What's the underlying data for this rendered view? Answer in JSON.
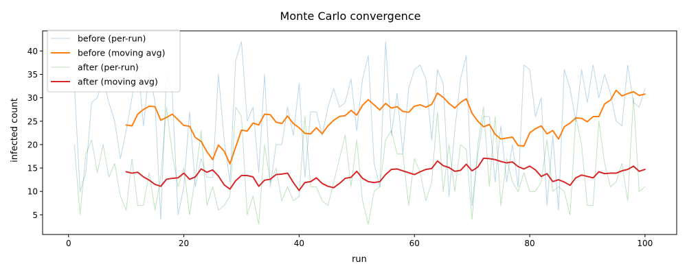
{
  "chart_data": {
    "type": "line",
    "title": "Monte Carlo convergence",
    "xlabel": "run",
    "ylabel": "infected count",
    "xlim": [
      -4.5,
      105.5
    ],
    "ylim": [
      0.8,
      44.3
    ],
    "x_ticks": [
      0,
      20,
      40,
      60,
      80,
      100
    ],
    "y_ticks": [
      5,
      10,
      15,
      20,
      25,
      30,
      35,
      40
    ],
    "grid": false,
    "legend_position": "upper-left",
    "series": [
      {
        "name": "before (per-run)",
        "color": "#1f77b4",
        "opacity": 0.3,
        "stroke_width": 1,
        "x": [
          1,
          2,
          3,
          4,
          5,
          6,
          7,
          8,
          9,
          10,
          11,
          12,
          13,
          14,
          15,
          16,
          17,
          18,
          19,
          20,
          21,
          22,
          23,
          24,
          25,
          26,
          27,
          28,
          29,
          30,
          31,
          32,
          33,
          34,
          35,
          36,
          37,
          38,
          39,
          40,
          41,
          42,
          43,
          44,
          45,
          46,
          47,
          48,
          49,
          50,
          51,
          52,
          53,
          54,
          55,
          56,
          57,
          58,
          59,
          60,
          61,
          62,
          63,
          64,
          65,
          66,
          67,
          68,
          69,
          70,
          71,
          72,
          73,
          74,
          75,
          76,
          77,
          78,
          79,
          80,
          81,
          82,
          83,
          84,
          85,
          86,
          87,
          88,
          89,
          90,
          91,
          92,
          93,
          94,
          95,
          96,
          97,
          98,
          99,
          100
        ],
        "values": [
          33,
          10,
          14,
          29,
          30,
          34,
          29,
          25,
          17,
          23,
          30,
          38,
          24,
          36,
          29,
          4,
          35,
          31,
          5,
          11,
          27,
          11,
          17,
          13,
          13,
          35,
          21,
          12,
          38,
          42,
          25,
          28,
          14,
          35,
          11,
          20,
          20,
          28,
          22,
          33,
          13,
          27,
          27,
          22,
          28,
          32,
          28,
          29,
          34,
          23,
          34,
          39,
          16,
          11,
          42,
          22,
          31,
          18,
          32,
          36,
          37,
          34,
          21,
          36,
          33,
          9,
          23,
          34,
          39,
          7,
          18,
          26,
          26,
          12,
          24,
          12,
          20,
          11,
          37,
          36,
          26,
          30,
          7,
          22,
          6,
          36,
          32,
          25,
          36,
          29,
          37,
          30,
          35,
          31,
          25,
          24,
          37,
          29,
          28,
          32
        ]
      },
      {
        "name": "before (moving avg)",
        "color": "#ff7f0e",
        "opacity": 1,
        "stroke_width": 2,
        "x": [
          10,
          11,
          12,
          13,
          14,
          15,
          16,
          17,
          18,
          19,
          20,
          21,
          22,
          23,
          24,
          25,
          26,
          27,
          28,
          29,
          30,
          31,
          32,
          33,
          34,
          35,
          36,
          37,
          38,
          39,
          40,
          41,
          42,
          43,
          44,
          45,
          46,
          47,
          48,
          49,
          50,
          51,
          52,
          53,
          54,
          55,
          56,
          57,
          58,
          59,
          60,
          61,
          62,
          63,
          64,
          65,
          66,
          67,
          68,
          69,
          70,
          71,
          72,
          73,
          74,
          75,
          76,
          77,
          78,
          79,
          80,
          81,
          82,
          83,
          84,
          85,
          86,
          87,
          88,
          89,
          90,
          91,
          92,
          93,
          94,
          95,
          96,
          97,
          98,
          99,
          100
        ],
        "values": [
          24.2,
          24,
          26.5,
          27.5,
          28.2,
          28.1,
          25.2,
          25.8,
          26.5,
          25.3,
          24.1,
          23.9,
          21.5,
          20.7,
          18.5,
          16.8,
          19.9,
          18.6,
          15.9,
          19.5,
          23.1,
          22.9,
          24.6,
          24.2,
          26.5,
          26.4,
          24.8,
          24.5,
          26.1,
          24.5,
          23.6,
          22.4,
          22.3,
          23.6,
          22.3,
          24,
          25.2,
          26,
          26.2,
          27.3,
          26.3,
          28.4,
          29.6,
          28.5,
          27.4,
          28.8,
          27.8,
          28.1,
          27.1,
          26.9,
          28.2,
          28.5,
          28,
          28.6,
          31,
          30.1,
          28.8,
          27.8,
          29,
          29.8,
          26.7,
          25,
          23.8,
          24.3,
          22.2,
          21.2,
          21.4,
          21.6,
          19.8,
          19.7,
          22.5,
          23.4,
          24,
          22.3,
          23,
          21.2,
          23.8,
          24.6,
          25.7,
          25.6,
          24.9,
          26,
          26,
          28.7,
          29.5,
          31.6,
          30.4,
          30.9,
          31.3,
          30.5,
          30.8
        ]
      },
      {
        "name": "after (per-run)",
        "color": "#2ca02c",
        "opacity": 0.3,
        "stroke_width": 1,
        "x": [
          1,
          2,
          3,
          4,
          5,
          6,
          7,
          8,
          9,
          10,
          11,
          12,
          13,
          14,
          15,
          16,
          17,
          18,
          19,
          20,
          21,
          22,
          23,
          24,
          25,
          26,
          27,
          28,
          29,
          30,
          31,
          32,
          33,
          34,
          35,
          36,
          37,
          38,
          39,
          40,
          41,
          42,
          43,
          44,
          45,
          46,
          47,
          48,
          49,
          50,
          51,
          52,
          53,
          54,
          55,
          56,
          57,
          58,
          59,
          60,
          61,
          62,
          63,
          64,
          65,
          66,
          67,
          68,
          69,
          70,
          71,
          72,
          73,
          74,
          75,
          76,
          77,
          78,
          79,
          80,
          81,
          82,
          83,
          84,
          85,
          86,
          87,
          88,
          89,
          90,
          91,
          92,
          93,
          94,
          95,
          96,
          97,
          98,
          99,
          100
        ],
        "values": [
          20,
          5,
          18,
          21,
          14,
          20,
          13,
          16,
          9,
          6,
          17,
          7,
          7,
          14,
          6,
          13,
          28,
          18,
          11,
          15,
          5,
          13,
          23,
          7,
          11,
          6,
          7,
          9,
          28,
          26,
          5,
          9,
          3,
          20,
          12,
          15,
          8,
          11,
          8,
          9,
          26,
          11,
          11,
          8,
          7,
          12,
          17,
          22,
          11,
          21,
          8,
          3,
          10,
          11,
          21,
          23,
          18,
          18,
          7,
          17,
          14,
          8,
          12,
          27,
          10,
          20,
          10,
          20,
          19,
          4,
          20,
          28,
          11,
          26,
          7,
          17,
          12,
          10,
          14,
          10,
          10,
          12,
          21,
          10,
          11,
          10,
          5,
          26,
          20,
          7,
          7,
          25,
          16,
          11,
          12,
          16,
          8,
          30,
          10,
          11
        ]
      },
      {
        "name": "after (moving avg)",
        "color": "#d62728",
        "opacity": 1,
        "stroke_width": 2,
        "x": [
          10,
          11,
          12,
          13,
          14,
          15,
          16,
          17,
          18,
          19,
          20,
          21,
          22,
          23,
          24,
          25,
          26,
          27,
          28,
          29,
          30,
          31,
          32,
          33,
          34,
          35,
          36,
          37,
          38,
          39,
          40,
          41,
          42,
          43,
          44,
          45,
          46,
          47,
          48,
          49,
          50,
          51,
          52,
          53,
          54,
          55,
          56,
          57,
          58,
          59,
          60,
          61,
          62,
          63,
          64,
          65,
          66,
          67,
          68,
          69,
          70,
          71,
          72,
          73,
          74,
          75,
          76,
          77,
          78,
          79,
          80,
          81,
          82,
          83,
          84,
          85,
          86,
          87,
          88,
          89,
          90,
          91,
          92,
          93,
          94,
          95,
          96,
          97,
          98,
          99,
          100
        ],
        "values": [
          14.2,
          13.9,
          14.1,
          13.1,
          12.4,
          11.5,
          11.1,
          12.6,
          12.8,
          12.9,
          13.9,
          12.6,
          13.1,
          14.8,
          14.1,
          14.6,
          13.3,
          11.4,
          10.5,
          12.3,
          13.4,
          13.4,
          13.1,
          11.1,
          12.4,
          12.6,
          13.6,
          13.7,
          13.9,
          11.9,
          10.2,
          11.9,
          12.1,
          12.9,
          11.7,
          11.1,
          10.8,
          11.7,
          12.8,
          13,
          14.3,
          12.8,
          12.1,
          11.9,
          12.1,
          13.6,
          14.7,
          14.8,
          14.4,
          14,
          13.6,
          14.2,
          14.7,
          14.9,
          16.5,
          15.5,
          15.1,
          14.3,
          14.5,
          15.8,
          14.4,
          15.2,
          17.1,
          17,
          16.8,
          16.4,
          16.1,
          16.3,
          15.3,
          14.8,
          15.4,
          14.6,
          13.2,
          13.8,
          12.1,
          12.5,
          12,
          11.3,
          12.9,
          13.5,
          13.2,
          12.9,
          14.2,
          13.8,
          13.9,
          13.9,
          14.4,
          14.7,
          15.4,
          14.3,
          14.7
        ]
      }
    ]
  }
}
